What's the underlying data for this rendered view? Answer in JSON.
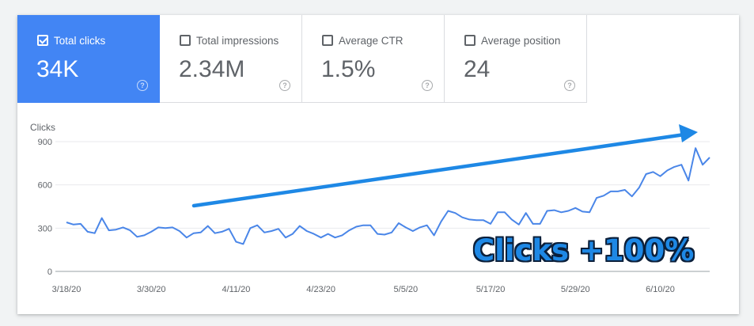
{
  "metrics": [
    {
      "label": "Total clicks",
      "value": "34K",
      "active": true,
      "help_icon": "help-circle-icon"
    },
    {
      "label": "Total impressions",
      "value": "2.34M",
      "active": false,
      "help_icon": "help-circle-icon"
    },
    {
      "label": "Average CTR",
      "value": "1.5%",
      "active": false,
      "help_icon": "help-circle-icon"
    },
    {
      "label": "Average position",
      "value": "24",
      "active": false,
      "help_icon": "help-circle-icon"
    }
  ],
  "colors": {
    "accent": "#4285f4",
    "line": "#4a86e8",
    "arrow": "#1e88e5",
    "badge_text": "#1e88e5",
    "badge_outline": "#0b1f3a"
  },
  "annotation": {
    "text": "Clicks +100%",
    "arrow_icon": "trend-arrow-icon"
  },
  "chart_data": {
    "type": "line",
    "ylabel": "Clicks",
    "ylim": [
      0,
      900
    ],
    "yticks": [
      0,
      300,
      600,
      900
    ],
    "x_start": "3/18/20",
    "xtick_labels": [
      "3/18/20",
      "3/30/20",
      "4/11/20",
      "4/23/20",
      "5/5/20",
      "5/17/20",
      "5/29/20",
      "6/10/20"
    ],
    "xtick_index": [
      0,
      12,
      24,
      36,
      48,
      60,
      72,
      84
    ],
    "grid": true,
    "series": [
      {
        "values": [
          340,
          325,
          330,
          275,
          265,
          370,
          285,
          290,
          305,
          285,
          240,
          250,
          275,
          305,
          300,
          305,
          280,
          235,
          265,
          270,
          315,
          265,
          275,
          295,
          205,
          190,
          300,
          320,
          270,
          280,
          295,
          235,
          260,
          315,
          280,
          260,
          235,
          260,
          235,
          250,
          285,
          310,
          320,
          320,
          260,
          255,
          270,
          335,
          305,
          280,
          305,
          320,
          250,
          345,
          420,
          405,
          375,
          360,
          355,
          355,
          330,
          410,
          410,
          360,
          325,
          405,
          330,
          330,
          420,
          425,
          410,
          420,
          440,
          415,
          410,
          510,
          525,
          555,
          555,
          565,
          520,
          580,
          675,
          690,
          660,
          700,
          725,
          740,
          630,
          855,
          740,
          790
        ]
      }
    ]
  }
}
